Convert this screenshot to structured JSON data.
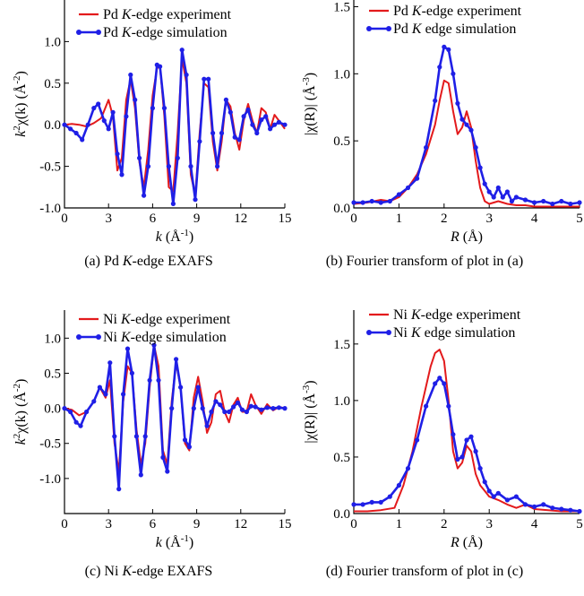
{
  "colors": {
    "experiment": "#e31a1c",
    "simulation": "#1f1fe6",
    "axis": "#000000"
  },
  "chart_data": [
    {
      "id": "a",
      "type": "line",
      "caption": "(a) Pd K-edge EXAFS",
      "caption_parts": {
        "prefix": "(a) Pd ",
        "italic": "K",
        "suffix": "-edge EXAFS"
      },
      "xlabel": {
        "italic": "k",
        "text": " (Å",
        "sup": "-1",
        "close": ")"
      },
      "ylabel": {
        "main": "k",
        "sup": "2",
        "rest": "χ(k) (Å",
        "sup2": "-2",
        "close": ")"
      },
      "xlim": [
        0,
        15
      ],
      "ylim": [
        -1.0,
        1.5
      ],
      "xticks": [
        "0",
        "3",
        "6",
        "9",
        "12",
        "15"
      ],
      "yticks": [
        "-1.0",
        "-0.5",
        "0.0",
        "0.5",
        "1.0"
      ],
      "legend": {
        "placement": "top-left",
        "experiment": {
          "prefix": "Pd ",
          "italic": "K",
          "suffix": "-edge experiment"
        },
        "simulation": {
          "prefix": "Pd ",
          "italic": "K",
          "suffix": "-edge simulation"
        }
      },
      "series": [
        {
          "role": "experiment",
          "name": "Pd K-edge experiment",
          "x": [
            0,
            0.5,
            1.0,
            1.5,
            2.0,
            2.5,
            3.0,
            3.3,
            3.6,
            3.9,
            4.2,
            4.5,
            4.8,
            5.1,
            5.4,
            5.7,
            6.0,
            6.3,
            6.5,
            6.8,
            7.1,
            7.4,
            7.7,
            8.0,
            8.3,
            8.6,
            8.9,
            9.2,
            9.5,
            9.8,
            10.1,
            10.4,
            10.7,
            11.0,
            11.3,
            11.6,
            11.9,
            12.2,
            12.5,
            12.8,
            13.1,
            13.4,
            13.7,
            14.0,
            14.3,
            14.6,
            15.0
          ],
          "y": [
            0.0,
            0.01,
            0.0,
            -0.02,
            0.02,
            0.08,
            0.3,
            0.1,
            -0.55,
            -0.4,
            0.3,
            0.55,
            0.2,
            -0.45,
            -0.75,
            -0.3,
            0.35,
            0.68,
            0.7,
            0.1,
            -0.75,
            -0.8,
            -0.1,
            0.8,
            0.5,
            -0.6,
            -0.85,
            -0.1,
            0.5,
            0.45,
            -0.2,
            -0.55,
            -0.2,
            0.3,
            0.22,
            -0.1,
            -0.3,
            0.05,
            0.25,
            0.05,
            -0.1,
            0.2,
            0.15,
            -0.05,
            0.12,
            0.05,
            -0.05
          ]
        },
        {
          "role": "simulation",
          "name": "Pd K-edge simulation",
          "x": [
            0,
            0.4,
            0.8,
            1.2,
            1.6,
            2.0,
            2.3,
            2.7,
            3.0,
            3.3,
            3.6,
            3.9,
            4.2,
            4.5,
            4.8,
            5.1,
            5.4,
            5.7,
            6.0,
            6.3,
            6.5,
            6.8,
            7.1,
            7.4,
            7.7,
            8.0,
            8.3,
            8.6,
            8.9,
            9.2,
            9.5,
            9.8,
            10.1,
            10.4,
            10.7,
            11.0,
            11.3,
            11.6,
            11.9,
            12.2,
            12.5,
            12.8,
            13.1,
            13.4,
            13.7,
            14.0,
            14.3,
            14.6,
            15.0
          ],
          "y": [
            0.0,
            -0.05,
            -0.1,
            -0.18,
            0.0,
            0.2,
            0.25,
            0.05,
            -0.05,
            0.15,
            -0.35,
            -0.6,
            0.1,
            0.6,
            0.3,
            -0.4,
            -0.85,
            -0.5,
            0.2,
            0.72,
            0.7,
            0.2,
            -0.5,
            -0.95,
            -0.4,
            0.9,
            0.6,
            -0.5,
            -0.9,
            -0.2,
            0.55,
            0.55,
            -0.1,
            -0.5,
            -0.1,
            0.3,
            0.15,
            -0.15,
            -0.18,
            0.1,
            0.18,
            0.0,
            -0.1,
            0.06,
            0.1,
            -0.05,
            0.0,
            0.03,
            0.0
          ]
        }
      ]
    },
    {
      "id": "b",
      "type": "line",
      "caption": "(b) Fourier transform of plot in (a)",
      "caption_parts": {
        "prefix": "(b) Fourier transform of plot in (a)",
        "italic": "",
        "suffix": ""
      },
      "xlabel": {
        "italic": "R",
        "text": " (Å",
        "sup": "",
        "close": ")"
      },
      "ylabel": {
        "main": "|χ(R)| (Å",
        "sup": "-3",
        "rest": "",
        "sup2": "",
        "close": ")"
      },
      "xlim": [
        0,
        5
      ],
      "ylim": [
        0.0,
        1.55
      ],
      "xticks": [
        "0",
        "1",
        "2",
        "3",
        "4",
        "5"
      ],
      "yticks": [
        "0.0",
        "0.5",
        "1.0",
        "1.5"
      ],
      "legend": {
        "placement": "top",
        "experiment": {
          "prefix": "Pd ",
          "italic": "K",
          "suffix": "-edge experiment"
        },
        "simulation": {
          "prefix": "Pd ",
          "italic": "K",
          "suffix": " edge simulation"
        }
      },
      "series": [
        {
          "role": "experiment",
          "name": "Pd K-edge experiment",
          "x": [
            0,
            0.3,
            0.6,
            0.8,
            1.0,
            1.2,
            1.4,
            1.6,
            1.8,
            1.9,
            2.0,
            2.1,
            2.2,
            2.3,
            2.4,
            2.5,
            2.6,
            2.7,
            2.8,
            2.9,
            3.0,
            3.2,
            3.4,
            3.6,
            3.8,
            4.0,
            4.3,
            4.6,
            5.0
          ],
          "y": [
            0.03,
            0.04,
            0.06,
            0.05,
            0.08,
            0.15,
            0.25,
            0.4,
            0.62,
            0.8,
            0.95,
            0.93,
            0.72,
            0.55,
            0.6,
            0.72,
            0.6,
            0.35,
            0.15,
            0.05,
            0.03,
            0.05,
            0.03,
            0.02,
            0.02,
            0.01,
            0.01,
            0.01,
            0.01
          ]
        },
        {
          "role": "simulation",
          "name": "Pd K edge simulation",
          "x": [
            0,
            0.2,
            0.4,
            0.6,
            0.8,
            1.0,
            1.2,
            1.4,
            1.6,
            1.8,
            1.9,
            2.0,
            2.1,
            2.2,
            2.3,
            2.4,
            2.5,
            2.6,
            2.7,
            2.8,
            2.9,
            3.0,
            3.1,
            3.2,
            3.3,
            3.4,
            3.5,
            3.6,
            3.8,
            4.0,
            4.2,
            4.4,
            4.6,
            4.8,
            5.0
          ],
          "y": [
            0.04,
            0.04,
            0.05,
            0.04,
            0.05,
            0.1,
            0.15,
            0.22,
            0.45,
            0.8,
            1.05,
            1.2,
            1.18,
            1.0,
            0.78,
            0.66,
            0.62,
            0.58,
            0.45,
            0.3,
            0.18,
            0.12,
            0.08,
            0.15,
            0.08,
            0.12,
            0.05,
            0.08,
            0.06,
            0.04,
            0.05,
            0.03,
            0.05,
            0.03,
            0.04
          ]
        }
      ]
    },
    {
      "id": "c",
      "type": "line",
      "caption": "(c) Ni K-edge EXAFS",
      "caption_parts": {
        "prefix": "(c) Ni ",
        "italic": "K",
        "suffix": "-edge EXAFS"
      },
      "xlabel": {
        "italic": "k",
        "text": " (Å",
        "sup": "-1",
        "close": ")"
      },
      "ylabel": {
        "main": "k",
        "sup": "2",
        "rest": "χ(k) (Å",
        "sup2": "-2",
        "close": ")"
      },
      "xlim": [
        0,
        15
      ],
      "ylim": [
        -1.5,
        1.4
      ],
      "xticks": [
        "0",
        "3",
        "6",
        "9",
        "12",
        "15"
      ],
      "yticks": [
        "-1.0",
        "-0.5",
        "0.0",
        "0.5",
        "1.0"
      ],
      "legend": {
        "placement": "top-left",
        "experiment": {
          "prefix": "Ni ",
          "italic": "K",
          "suffix": "-edge experiment"
        },
        "simulation": {
          "prefix": "Ni ",
          "italic": "K",
          "suffix": "-edge simulation"
        }
      },
      "series": [
        {
          "role": "experiment",
          "name": "Ni K-edge experiment",
          "x": [
            0,
            0.5,
            1.0,
            1.5,
            2.0,
            2.4,
            2.8,
            3.1,
            3.4,
            3.7,
            4.0,
            4.3,
            4.6,
            4.9,
            5.2,
            5.5,
            5.8,
            6.1,
            6.4,
            6.7,
            7.0,
            7.3,
            7.6,
            7.9,
            8.2,
            8.5,
            8.8,
            9.1,
            9.4,
            9.7,
            10.0,
            10.3,
            10.6,
            10.9,
            11.2,
            11.5,
            11.8,
            12.1,
            12.4,
            12.7,
            13.0,
            13.4,
            13.8,
            14.2,
            14.6,
            15.0
          ],
          "y": [
            0.0,
            -0.02,
            -0.1,
            -0.05,
            0.1,
            0.3,
            0.15,
            0.4,
            -0.5,
            -0.9,
            0.1,
            0.6,
            0.5,
            -0.3,
            -0.8,
            -0.5,
            0.3,
            0.9,
            0.6,
            -0.6,
            -0.8,
            0.1,
            0.65,
            0.3,
            -0.5,
            -0.6,
            0.15,
            0.45,
            0.1,
            -0.35,
            -0.2,
            0.2,
            0.25,
            -0.05,
            -0.2,
            0.05,
            0.15,
            -0.05,
            -0.05,
            0.2,
            0.05,
            -0.08,
            0.06,
            -0.03,
            0.02,
            0.0
          ]
        },
        {
          "role": "simulation",
          "name": "Ni K-edge simulation",
          "x": [
            0,
            0.4,
            0.8,
            1.1,
            1.5,
            2.0,
            2.4,
            2.8,
            3.1,
            3.4,
            3.7,
            4.0,
            4.3,
            4.6,
            4.9,
            5.2,
            5.5,
            5.8,
            6.1,
            6.4,
            6.7,
            7.0,
            7.3,
            7.6,
            7.9,
            8.2,
            8.5,
            8.8,
            9.1,
            9.4,
            9.7,
            10.0,
            10.3,
            10.6,
            10.9,
            11.2,
            11.5,
            11.8,
            12.1,
            12.4,
            12.7,
            13.0,
            13.4,
            13.8,
            14.2,
            14.6,
            15.0
          ],
          "y": [
            0.0,
            -0.05,
            -0.2,
            -0.25,
            -0.05,
            0.1,
            0.3,
            0.2,
            0.65,
            -0.4,
            -1.15,
            0.2,
            0.85,
            0.5,
            -0.4,
            -0.95,
            -0.4,
            0.4,
            0.9,
            0.4,
            -0.7,
            -0.9,
            0.0,
            0.7,
            0.3,
            -0.45,
            -0.55,
            0.0,
            0.3,
            0.0,
            -0.25,
            -0.05,
            0.1,
            0.05,
            -0.05,
            -0.05,
            0.02,
            0.08,
            -0.02,
            -0.05,
            0.03,
            0.02,
            -0.02,
            0.01,
            0.0,
            0.01,
            0.0
          ]
        }
      ]
    },
    {
      "id": "d",
      "type": "line",
      "caption": "(d) Fourier transform of plot in (c)",
      "caption_parts": {
        "prefix": "(d) Fourier transform of plot in (c)",
        "italic": "",
        "suffix": ""
      },
      "xlabel": {
        "italic": "R",
        "text": " (Å",
        "sup": "",
        "close": ")"
      },
      "ylabel": {
        "main": "|χ(R)| (Å",
        "sup": "-3",
        "rest": "",
        "sup2": "",
        "close": ")"
      },
      "xlim": [
        0,
        5
      ],
      "ylim": [
        0.0,
        1.8
      ],
      "xticks": [
        "0",
        "1",
        "2",
        "3",
        "4",
        "5"
      ],
      "yticks": [
        "0.0",
        "0.5",
        "1.0",
        "1.5"
      ],
      "legend": {
        "placement": "top",
        "experiment": {
          "prefix": "Ni ",
          "italic": "K",
          "suffix": "-edge experiment"
        },
        "simulation": {
          "prefix": "Ni ",
          "italic": "K",
          "suffix": " edge simulation"
        }
      },
      "series": [
        {
          "role": "experiment",
          "name": "Ni K-edge experiment",
          "x": [
            0,
            0.3,
            0.6,
            0.9,
            1.1,
            1.3,
            1.5,
            1.7,
            1.8,
            1.9,
            2.0,
            2.1,
            2.2,
            2.3,
            2.4,
            2.5,
            2.6,
            2.7,
            2.8,
            2.9,
            3.0,
            3.2,
            3.4,
            3.6,
            3.8,
            4.0,
            4.3,
            4.6,
            5.0
          ],
          "y": [
            0.02,
            0.02,
            0.03,
            0.05,
            0.25,
            0.55,
            0.95,
            1.3,
            1.42,
            1.45,
            1.35,
            1.0,
            0.55,
            0.4,
            0.45,
            0.6,
            0.55,
            0.35,
            0.25,
            0.2,
            0.15,
            0.12,
            0.08,
            0.05,
            0.08,
            0.04,
            0.03,
            0.02,
            0.02
          ]
        },
        {
          "role": "simulation",
          "name": "Ni K edge simulation",
          "x": [
            0,
            0.2,
            0.4,
            0.6,
            0.8,
            1.0,
            1.2,
            1.4,
            1.6,
            1.8,
            1.9,
            2.0,
            2.1,
            2.2,
            2.3,
            2.4,
            2.5,
            2.6,
            2.7,
            2.8,
            2.9,
            3.0,
            3.1,
            3.2,
            3.4,
            3.6,
            3.8,
            4.0,
            4.2,
            4.4,
            4.6,
            4.8,
            5.0
          ],
          "y": [
            0.08,
            0.08,
            0.1,
            0.1,
            0.15,
            0.25,
            0.4,
            0.65,
            0.95,
            1.15,
            1.2,
            1.15,
            0.95,
            0.7,
            0.48,
            0.5,
            0.65,
            0.68,
            0.55,
            0.4,
            0.28,
            0.2,
            0.15,
            0.18,
            0.12,
            0.15,
            0.08,
            0.06,
            0.08,
            0.05,
            0.04,
            0.03,
            0.02
          ]
        }
      ]
    }
  ]
}
